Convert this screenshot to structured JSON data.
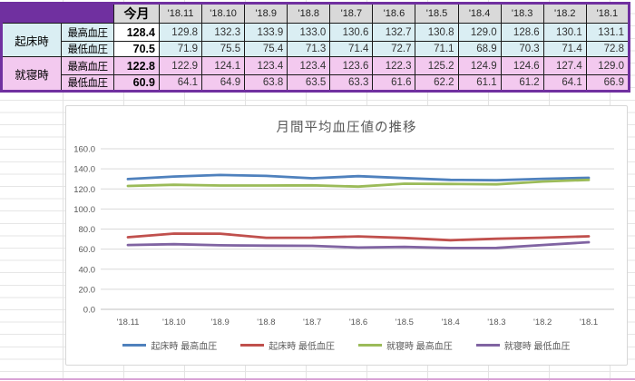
{
  "table": {
    "col_headers": [
      "今月",
      "'18.11",
      "'18.10",
      "'18.9",
      "'18.8",
      "'18.7",
      "'18.6",
      "'18.5",
      "'18.4",
      "'18.3",
      "'18.2",
      "'18.1"
    ],
    "groups": [
      {
        "label": "起床時",
        "bg": "#DAEEF3",
        "current_bg": "#FFFFFF",
        "rows": [
          {
            "label": "最高血圧",
            "current": "128.4",
            "values": [
              "129.8",
              "132.3",
              "133.9",
              "133.0",
              "130.6",
              "132.7",
              "130.8",
              "129.0",
              "128.6",
              "130.1",
              "131.1"
            ]
          },
          {
            "label": "最低血圧",
            "current": "70.5",
            "values": [
              "71.9",
              "75.5",
              "75.4",
              "71.3",
              "71.4",
              "72.7",
              "71.1",
              "68.9",
              "70.3",
              "71.4",
              "72.8"
            ]
          }
        ]
      },
      {
        "label": "就寝時",
        "bg": "#F3C9EF",
        "current_bg": "#F3C9EF",
        "rows": [
          {
            "label": "最高血圧",
            "current": "122.8",
            "values": [
              "122.9",
              "124.1",
              "123.4",
              "123.4",
              "123.6",
              "122.3",
              "125.2",
              "124.9",
              "124.6",
              "127.4",
              "129.0"
            ]
          },
          {
            "label": "最低血圧",
            "current": "60.9",
            "values": [
              "64.1",
              "64.9",
              "63.8",
              "63.5",
              "63.3",
              "61.6",
              "62.2",
              "61.1",
              "61.2",
              "64.1",
              "66.9"
            ]
          }
        ]
      }
    ]
  },
  "chart_data": {
    "type": "line",
    "title": "月間平均血圧値の推移",
    "categories": [
      "'18.11",
      "'18.10",
      "'18.9",
      "'18.8",
      "'18.7",
      "'18.6",
      "'18.5",
      "'18.4",
      "'18.3",
      "'18.2",
      "'18.1"
    ],
    "series": [
      {
        "name": "起床時 最高血圧",
        "color": "#4F81BD",
        "values": [
          129.8,
          132.3,
          133.9,
          133.0,
          130.6,
          132.7,
          130.8,
          129.0,
          128.6,
          130.1,
          131.1
        ]
      },
      {
        "name": "起床時 最低血圧",
        "color": "#C0504D",
        "values": [
          71.9,
          75.5,
          75.4,
          71.3,
          71.4,
          72.7,
          71.1,
          68.9,
          70.3,
          71.4,
          72.8
        ]
      },
      {
        "name": "就寝時 最高血圧",
        "color": "#9BBB59",
        "values": [
          122.9,
          124.1,
          123.4,
          123.4,
          123.6,
          122.3,
          125.2,
          124.9,
          124.6,
          127.4,
          129.0
        ]
      },
      {
        "name": "就寝時 最低血圧",
        "color": "#8064A2",
        "values": [
          64.1,
          64.9,
          63.8,
          63.5,
          63.3,
          61.6,
          62.2,
          61.1,
          61.2,
          64.1,
          66.9
        ]
      }
    ],
    "ylim": [
      0,
      160
    ],
    "ytick_step": 20,
    "ytick_labels": [
      "0.0",
      "20.0",
      "40.0",
      "60.0",
      "80.0",
      "100.0",
      "120.0",
      "140.0",
      "160.0"
    ],
    "grid": true,
    "legend_position": "bottom"
  },
  "colors": {
    "table_border": "#7030A0",
    "header_bg": "#D9D9D9",
    "morning_bg": "#DAEEF3",
    "night_bg": "#F3C9EF",
    "chart_text": "#595959",
    "gridline": "#D9D9D9"
  }
}
